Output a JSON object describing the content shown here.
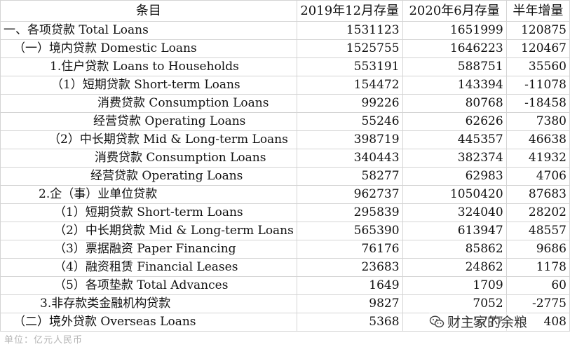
{
  "table": {
    "headers": [
      "条目",
      "2019年12月存量",
      "2020年6月存量",
      "半年增量"
    ],
    "rows": [
      {
        "label": "一、各项贷款 Total Loans",
        "indent": 4,
        "v1": "1531123",
        "v2": "1651999",
        "v3": "120875"
      },
      {
        "label": "（一）境内贷款 Domestic Loans",
        "indent": 18,
        "v1": "1525755",
        "v2": "1646223",
        "v3": "120467"
      },
      {
        "label": "1.住户贷款 Loans to Households",
        "indent": 70,
        "v1": "553191",
        "v2": "588751",
        "v3": "35560"
      },
      {
        "label": "（1）短期贷款 Short-term  Loans",
        "indent": 72,
        "v1": "154472",
        "v2": "143394",
        "v3": "-11078"
      },
      {
        "label": "消费贷款 Consumption Loans",
        "indent": 138,
        "v1": "99226",
        "v2": "80768",
        "v3": "-18458"
      },
      {
        "label": "经营贷款 Operating Loans",
        "indent": 132,
        "v1": "55246",
        "v2": "62626",
        "v3": "7380"
      },
      {
        "label": "（2）中长期贷款 Mid & Long-term  Loans",
        "indent": 68,
        "v1": "398719",
        "v2": "445357",
        "v3": "46638"
      },
      {
        "label": "消费贷款 Consumption Loans",
        "indent": 134,
        "v1": "340443",
        "v2": "382374",
        "v3": "41932"
      },
      {
        "label": "经营贷款 Operating Loans",
        "indent": 128,
        "v1": "58277",
        "v2": "62983",
        "v3": "4706"
      },
      {
        "label": "2.企（事）业单位贷款",
        "indent": 54,
        "v1": "962737",
        "v2": "1050420",
        "v3": "87683"
      },
      {
        "label": "（1）短期贷款 Short-term Loans",
        "indent": 76,
        "v1": "295839",
        "v2": "324040",
        "v3": "28202"
      },
      {
        "label": "（2）中长期贷款 Mid & Long-term Loans",
        "indent": 76,
        "v1": "565390",
        "v2": "613947",
        "v3": "48557"
      },
      {
        "label": "（3）票据融资 Paper Financing",
        "indent": 76,
        "v1": "76176",
        "v2": "85862",
        "v3": "9686"
      },
      {
        "label": "（4）融资租赁 Financial Leases",
        "indent": 76,
        "v1": "23683",
        "v2": "24862",
        "v3": "1178"
      },
      {
        "label": "（5）各项垫款 Total Advances",
        "indent": 76,
        "v1": "1649",
        "v2": "1709",
        "v3": "60"
      },
      {
        "label": "3.非存款类金融机构贷款",
        "indent": 56,
        "v1": "9827",
        "v2": "7052",
        "v3": "-2775"
      },
      {
        "label": "（二）境外贷款 Overseas Loans",
        "indent": 18,
        "v1": "5368",
        "v2": "5777",
        "v3": "408"
      }
    ]
  },
  "footer": {
    "unit": "单位：亿元人民币"
  },
  "watermark": {
    "icon": "wechat-icon",
    "text": "财主家的余粮"
  }
}
